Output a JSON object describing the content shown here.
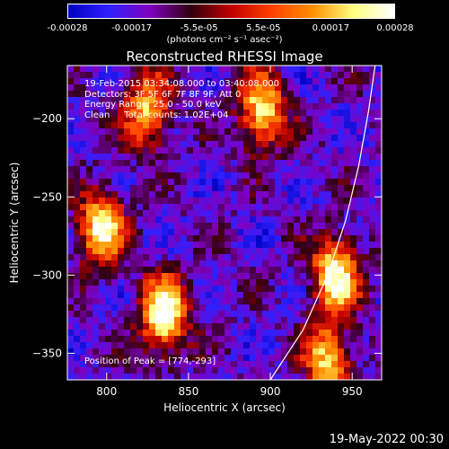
{
  "colorbar": {
    "tick_labels": [
      "-0.00028",
      "-0.00017",
      "-5.5e-05",
      "5.5e-05",
      "0.00017",
      "0.00028"
    ],
    "tick_values": [
      -0.00028,
      -0.00017,
      -5.5e-05,
      5.5e-05,
      0.00017,
      0.00028
    ],
    "units": "(photons cm⁻² s⁻¹ asec⁻²)",
    "range": [
      -0.00028,
      0.00028
    ],
    "colormap": [
      "#0000c0",
      "#3020ff",
      "#8000c0",
      "#300010",
      "#c00000",
      "#ff4000",
      "#ff9000",
      "#ffff80",
      "#ffffff"
    ]
  },
  "chart_data": {
    "type": "heatmap",
    "title": "Reconstructed RHESSI Image",
    "xlabel": "Heliocentric X (arcsec)",
    "ylabel": "Heliocentric Y (arcsec)",
    "xlim": [
      776,
      968
    ],
    "ylim": [
      -367,
      -166
    ],
    "x_ticks": [
      800,
      850,
      900,
      950
    ],
    "y_ticks": [
      -200,
      -250,
      -300,
      -350
    ],
    "annotations": {
      "time": "19-Feb-2015 03:34:08.000 to 03:40:08.000",
      "detectors": "Detectors: 3F 5F 6F 7F 8F 9F, Att 0",
      "energy": "Energy Range: 25.0 - 50.0 keV",
      "method": "Clean     Total counts: 1.02E+04",
      "peak": "Position of Peak = [774,-293]"
    },
    "bright_regions": [
      {
        "x": 797,
        "y": -270,
        "level": 0.85
      },
      {
        "x": 835,
        "y": -325,
        "level": 0.95
      },
      {
        "x": 825,
        "y": -195,
        "level": 0.7
      },
      {
        "x": 895,
        "y": -195,
        "level": 0.8
      },
      {
        "x": 940,
        "y": -300,
        "level": 0.9
      },
      {
        "x": 935,
        "y": -355,
        "level": 0.75
      }
    ],
    "limb_arc": [
      [
        900,
        -367
      ],
      [
        920,
        -335
      ],
      [
        935,
        -300
      ],
      [
        946,
        -265
      ],
      [
        954,
        -230
      ],
      [
        960,
        -195
      ],
      [
        964,
        -166
      ]
    ]
  },
  "footer_date": "19-May-2022 00:30"
}
